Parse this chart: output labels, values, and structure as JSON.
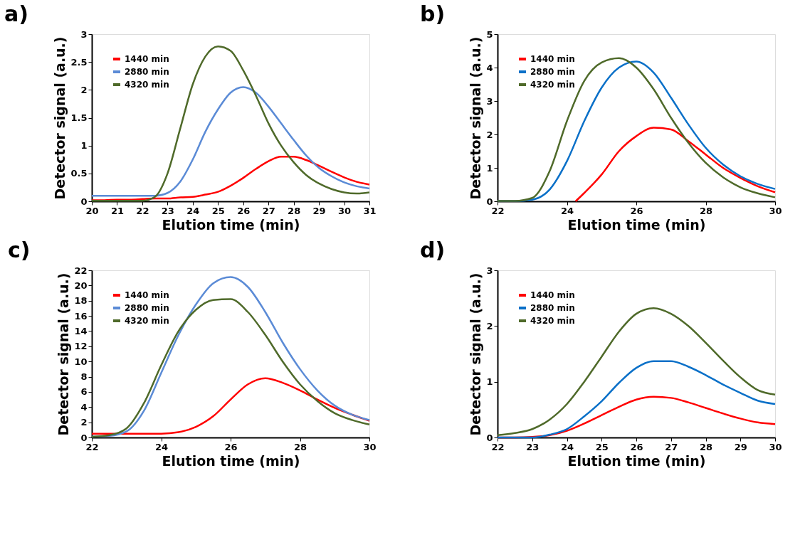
{
  "chart_data": [
    {
      "type": "line",
      "title": "a)",
      "xlabel": "Elution time (min)",
      "ylabel": "Detector signal (a.u.)",
      "legend": "top left",
      "grid": false,
      "x": [
        20,
        20.5,
        21,
        21.5,
        22,
        22.5,
        23,
        23.5,
        24,
        24.5,
        25,
        25.5,
        26,
        26.5,
        27,
        27.5,
        28,
        28.5,
        29,
        29.5,
        30,
        30.5,
        31
      ],
      "xlim": [
        20,
        31
      ],
      "xticks": [
        20,
        21,
        22,
        23,
        24,
        25,
        26,
        27,
        28,
        29,
        30,
        31
      ],
      "ylim": [
        0,
        3
      ],
      "yticks": [
        0,
        0.5,
        1,
        1.5,
        2,
        2.5,
        3
      ],
      "series": [
        {
          "name": "1440 min",
          "color": "#ff0000",
          "values": [
            0.02,
            0.02,
            0.03,
            0.03,
            0.04,
            0.05,
            0.05,
            0.07,
            0.08,
            0.12,
            0.17,
            0.28,
            0.42,
            0.58,
            0.72,
            0.8,
            0.8,
            0.74,
            0.64,
            0.53,
            0.43,
            0.35,
            0.3
          ]
        },
        {
          "name": "2880 min",
          "color": "#5b8bd6",
          "values": [
            0.1,
            0.1,
            0.1,
            0.1,
            0.1,
            0.1,
            0.15,
            0.35,
            0.75,
            1.25,
            1.65,
            1.95,
            2.05,
            1.95,
            1.7,
            1.4,
            1.1,
            0.82,
            0.6,
            0.45,
            0.34,
            0.27,
            0.23
          ]
        },
        {
          "name": "4320 min",
          "color": "#4f6a2a",
          "values": [
            0.01,
            0.01,
            0.01,
            0.01,
            0.01,
            0.08,
            0.5,
            1.3,
            2.1,
            2.6,
            2.78,
            2.7,
            2.35,
            1.9,
            1.4,
            1.0,
            0.7,
            0.47,
            0.32,
            0.22,
            0.16,
            0.14,
            0.16
          ]
        }
      ]
    },
    {
      "type": "line",
      "title": "b)",
      "xlabel": "Elution time (min)",
      "ylabel": "Detector signal (a.u.)",
      "legend": "top left",
      "grid": false,
      "x": [
        22,
        22.5,
        23,
        23.5,
        24,
        24.5,
        25,
        25.5,
        26,
        26.5,
        27,
        27.5,
        28,
        28.5,
        29,
        29.5,
        30
      ],
      "xlim": [
        22,
        30
      ],
      "xticks": [
        22,
        24,
        26,
        28,
        30
      ],
      "ylim": [
        0,
        5
      ],
      "yticks": [
        0,
        1,
        2,
        3,
        4,
        5
      ],
      "series": [
        {
          "name": "1440 min",
          "color": "#ff0000",
          "x": [
            24.25,
            24.5,
            25,
            25.5,
            26,
            26.5,
            27,
            27.5,
            28,
            28.5,
            29,
            29.5,
            30
          ],
          "values": [
            0,
            0.25,
            0.8,
            1.5,
            1.95,
            2.2,
            2.15,
            1.8,
            1.4,
            1.0,
            0.7,
            0.45,
            0.27
          ]
        },
        {
          "name": "2880 min",
          "color": "#0a70c8",
          "values": [
            0.01,
            0.01,
            0.05,
            0.35,
            1.2,
            2.4,
            3.4,
            4.0,
            4.18,
            3.85,
            3.1,
            2.3,
            1.6,
            1.1,
            0.75,
            0.52,
            0.37
          ]
        },
        {
          "name": "4320 min",
          "color": "#4f6a2a",
          "values": [
            0.01,
            0.01,
            0.1,
            0.9,
            2.4,
            3.6,
            4.15,
            4.28,
            4.0,
            3.35,
            2.5,
            1.75,
            1.15,
            0.72,
            0.42,
            0.24,
            0.12
          ]
        }
      ]
    },
    {
      "type": "line",
      "title": "c)",
      "xlabel": "Elution time (min)",
      "ylabel": "Detector signal (a.u.)",
      "legend": "top left",
      "grid": false,
      "x": [
        22,
        22.5,
        23,
        23.5,
        24,
        24.5,
        25,
        25.5,
        26,
        26.5,
        27,
        27.5,
        28,
        28.5,
        29,
        29.5,
        30
      ],
      "xlim": [
        22,
        30
      ],
      "xticks": [
        22,
        24,
        26,
        28,
        30
      ],
      "ylim": [
        0,
        22
      ],
      "yticks": [
        0,
        2,
        4,
        6,
        8,
        10,
        12,
        14,
        16,
        18,
        20,
        22
      ],
      "series": [
        {
          "name": "1440 min",
          "color": "#ff0000",
          "values": [
            0.5,
            0.5,
            0.5,
            0.5,
            0.5,
            0.7,
            1.4,
            2.8,
            5.0,
            7.0,
            7.8,
            7.2,
            6.2,
            5.0,
            3.9,
            3.0,
            2.2
          ]
        },
        {
          "name": "2880 min",
          "color": "#5b8bd6",
          "values": [
            0.1,
            0.2,
            0.8,
            3.5,
            8.5,
            13.5,
            17.5,
            20.3,
            21.1,
            19.8,
            16.5,
            12.5,
            9.0,
            6.2,
            4.2,
            3.0,
            2.3
          ]
        },
        {
          "name": "4320 min",
          "color": "#4f6a2a",
          "values": [
            0.1,
            0.3,
            1.2,
            4.5,
            9.5,
            14,
            16.8,
            18.1,
            18.2,
            16.5,
            13.5,
            10.0,
            7.0,
            4.8,
            3.2,
            2.3,
            1.7
          ]
        }
      ]
    },
    {
      "type": "line",
      "title": "d)",
      "xlabel": "Elution time (min)",
      "ylabel": "Detector signal (a.u.)",
      "legend": "top left",
      "grid": false,
      "x": [
        22,
        22.5,
        23,
        23.5,
        24,
        24.5,
        25,
        25.5,
        26,
        26.5,
        27,
        27.5,
        28,
        28.5,
        29,
        29.5,
        30
      ],
      "xlim": [
        22,
        30
      ],
      "xticks": [
        22,
        23,
        24,
        25,
        26,
        27,
        28,
        29,
        30
      ],
      "ylim": [
        0,
        3
      ],
      "yticks": [
        0,
        1,
        2,
        3
      ],
      "series": [
        {
          "name": "1440 min",
          "color": "#ff0000",
          "values": [
            0,
            0,
            0.01,
            0.04,
            0.12,
            0.25,
            0.4,
            0.55,
            0.68,
            0.73,
            0.71,
            0.63,
            0.53,
            0.43,
            0.34,
            0.27,
            0.24
          ]
        },
        {
          "name": "2880 min",
          "color": "#0a70c8",
          "values": [
            0,
            0,
            0,
            0.05,
            0.15,
            0.38,
            0.65,
            0.98,
            1.25,
            1.37,
            1.37,
            1.27,
            1.12,
            0.95,
            0.8,
            0.66,
            0.6
          ]
        },
        {
          "name": "4320 min",
          "color": "#4f6a2a",
          "values": [
            0.04,
            0.08,
            0.15,
            0.32,
            0.6,
            1.0,
            1.45,
            1.9,
            2.22,
            2.32,
            2.22,
            2.0,
            1.7,
            1.38,
            1.08,
            0.85,
            0.77
          ]
        }
      ]
    }
  ]
}
